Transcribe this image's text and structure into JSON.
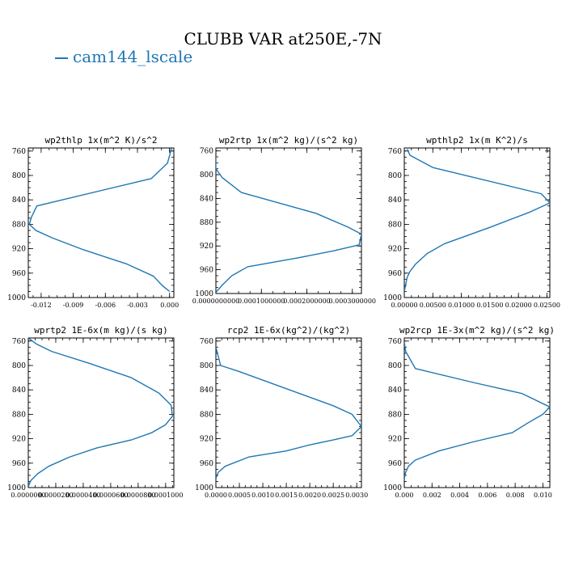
{
  "page": {
    "title": "CLUBB VAR at250E,-7N",
    "legend": {
      "label": "cam144_lscale",
      "color": "#1f77b4"
    }
  },
  "chart_data": [
    {
      "type": "line",
      "title": "wp2thlp  1x(m^2 K)/s^2",
      "series": [
        {
          "name": "cam144_lscale",
          "color": "#1f77b4",
          "x": [
            0.0002,
            -0.0002,
            -0.0017,
            -0.0124,
            -0.0129,
            -0.0131,
            -0.0125,
            -0.011,
            -0.008,
            -0.004,
            -0.0015,
            -0.0007,
            0.0
          ],
          "y": [
            755,
            780,
            805,
            850,
            868,
            880,
            890,
            902,
            922,
            945,
            965,
            980,
            990
          ]
        }
      ],
      "x_ticks": [
        -0.012,
        -0.009,
        -0.006,
        -0.003,
        0.0
      ],
      "x_tick_labels": [
        "-0.012",
        "-0.009",
        "-0.006",
        "-0.003",
        "0.000"
      ],
      "xlim": [
        -0.0132,
        0.0004
      ],
      "y_ticks": [
        760,
        800,
        840,
        880,
        920,
        960,
        1000
      ],
      "y_tick_labels": [
        "760",
        "800",
        "840",
        "880",
        "920",
        "960",
        "1000"
      ],
      "ylim": [
        1000,
        755
      ]
    },
    {
      "type": "line",
      "title": "wp2rtp  1x(m^2 kg)/(s^2 kg)",
      "series": [
        {
          "name": "cam144_lscale",
          "color": "#1f77b4",
          "x": [
            0.0,
            0.0,
            1.4e-05,
            5.6e-05,
            0.00022,
            0.00029,
            0.00032,
            0.000315,
            0.00026,
            0.00018,
            7e-05,
            3.5e-05,
            1.5e-05,
            0.0
          ],
          "y": [
            770,
            790,
            805,
            830,
            865,
            888,
            900,
            918,
            928,
            940,
            955,
            970,
            985,
            998
          ]
        }
      ],
      "x_ticks": [
        0.0,
        0.0001,
        0.0002,
        0.0003
      ],
      "x_tick_labels": [
        "0.0000000000",
        "0.0001000000",
        "0.0002000000",
        "0.0003000000"
      ],
      "xlim": [
        0.0,
        0.00032
      ],
      "y_ticks": [
        760,
        800,
        840,
        880,
        920,
        960,
        1000
      ],
      "y_tick_labels": [
        "760",
        "800",
        "840",
        "880",
        "920",
        "960",
        "1000"
      ],
      "ylim": [
        1000,
        755
      ]
    },
    {
      "type": "line",
      "title": "wpthlp2  1x(m K^2)/s",
      "series": [
        {
          "name": "cam144_lscale",
          "color": "#1f77b4",
          "x": [
            0.0005,
            0.001,
            0.005,
            0.024,
            0.025,
            0.0255,
            0.022,
            0.015,
            0.007,
            0.004,
            0.002,
            0.001,
            0.0005,
            0.0
          ],
          "y": [
            757,
            767,
            787,
            830,
            840,
            845,
            860,
            885,
            912,
            928,
            945,
            957,
            967,
            990
          ]
        }
      ],
      "x_ticks": [
        0.0,
        0.005,
        0.01,
        0.015,
        0.02,
        0.025
      ],
      "x_tick_labels": [
        "0.00000",
        "0.00500",
        "0.01000",
        "0.01500",
        "0.02000",
        "0.02500"
      ],
      "xlim": [
        0.0,
        0.0255
      ],
      "y_ticks": [
        760,
        800,
        840,
        880,
        920,
        960,
        1000
      ],
      "y_tick_labels": [
        "760",
        "800",
        "840",
        "880",
        "920",
        "960",
        "1000"
      ],
      "ylim": [
        1000,
        755
      ]
    },
    {
      "type": "line",
      "title": "wprtp2  1E-6x(m kg)/(s kg)",
      "series": [
        {
          "name": "cam144_lscale",
          "color": "#1f77b4",
          "x": [
            0.0,
            6e-06,
            1.7e-05,
            4.5e-05,
            7.5e-05,
            9.5e-05,
            0.000104,
            0.000105,
            0.0001,
            9e-05,
            7.5e-05,
            5e-05,
            3e-05,
            1.5e-05,
            7e-06,
            2e-06,
            0.0
          ],
          "y": [
            755,
            765,
            777,
            797,
            820,
            845,
            865,
            883,
            897,
            910,
            922,
            935,
            950,
            965,
            977,
            988,
            998
          ]
        }
      ],
      "x_ticks": [
        0.0,
        2e-05,
        4e-05,
        6e-05,
        8e-05,
        0.0001
      ],
      "x_tick_labels": [
        "0.0000000",
        "0.0000200",
        "0.0000400",
        "0.0000600",
        "0.0000800",
        "0.0001000"
      ],
      "xlim": [
        0.0,
        0.000106
      ],
      "y_ticks": [
        760,
        800,
        840,
        880,
        920,
        960,
        1000
      ],
      "y_tick_labels": [
        "760",
        "800",
        "840",
        "880",
        "920",
        "960",
        "1000"
      ],
      "ylim": [
        1000,
        755
      ]
    },
    {
      "type": "line",
      "title": "rcp2  1E-6x(kg^2)/(kg^2)",
      "series": [
        {
          "name": "cam144_lscale",
          "color": "#1f77b4",
          "x": [
            0.0,
            5e-05,
            0.0001,
            0.0005,
            0.0025,
            0.0029,
            0.0031,
            0.0029,
            0.0025,
            0.002,
            0.0015,
            0.0007,
            0.0002,
            5e-05,
            0.0
          ],
          "y": [
            770,
            785,
            800,
            810,
            866,
            880,
            900,
            915,
            922,
            930,
            940,
            950,
            965,
            975,
            985
          ]
        }
      ],
      "x_ticks": [
        0.0,
        0.0005,
        0.001,
        0.0015,
        0.002,
        0.0025,
        0.003
      ],
      "x_tick_labels": [
        "0.0000",
        "0.0005",
        "0.0010",
        "0.0015",
        "0.0020",
        "0.0025",
        "0.0030"
      ],
      "xlim": [
        0.0,
        0.0031
      ],
      "y_ticks": [
        760,
        800,
        840,
        880,
        920,
        960,
        1000
      ],
      "y_tick_labels": [
        "760",
        "800",
        "840",
        "880",
        "920",
        "960",
        "1000"
      ],
      "ylim": [
        1000,
        755
      ]
    },
    {
      "type": "line",
      "title": "wp2rcp  1E-3x(m^2 kg)/(s^2 kg)",
      "series": [
        {
          "name": "cam144_lscale",
          "color": "#1f77b4",
          "x": [
            0.0,
            0.0001,
            0.0008,
            0.005,
            0.0085,
            0.0105,
            0.01,
            0.009,
            0.0078,
            0.005,
            0.0025,
            0.0008,
            0.0003,
            0.0001,
            0.0
          ],
          "y": [
            762,
            777,
            805,
            828,
            846,
            868,
            880,
            893,
            910,
            925,
            940,
            955,
            965,
            975,
            985
          ]
        }
      ],
      "x_ticks": [
        0.0,
        0.002,
        0.004,
        0.006,
        0.008,
        0.01
      ],
      "x_tick_labels": [
        "0.000",
        "0.002",
        "0.004",
        "0.006",
        "0.008",
        "0.010"
      ],
      "xlim": [
        0.0,
        0.0105
      ],
      "y_ticks": [
        760,
        800,
        840,
        880,
        920,
        960,
        1000
      ],
      "y_tick_labels": [
        "760",
        "800",
        "840",
        "880",
        "920",
        "960",
        "1000"
      ],
      "ylim": [
        1000,
        755
      ]
    }
  ]
}
